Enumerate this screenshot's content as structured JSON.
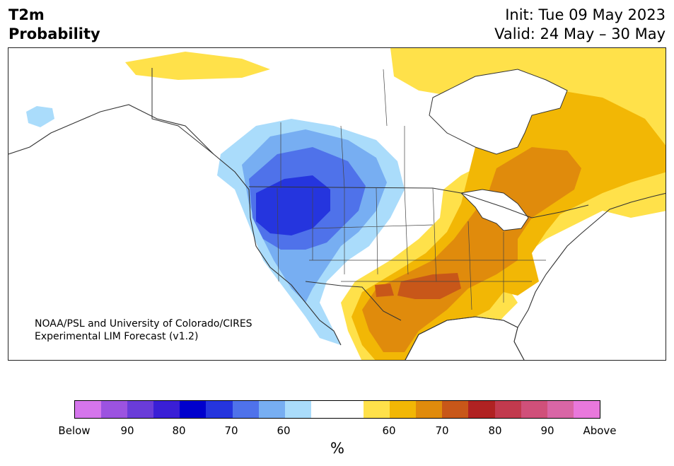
{
  "header": {
    "left_line1": "T2m",
    "left_line2": "Probability",
    "right_line1": "Init: Tue 09 May 2023",
    "right_line2": "Valid: 24 May – 30 May"
  },
  "credit": {
    "line1": "NOAA/PSL and University of Colorado/CIRES",
    "line2": "Experimental LIM Forecast (v1.2)"
  },
  "colorbar": {
    "colors": [
      "#d575ec",
      "#9c53e0",
      "#6a3cd9",
      "#3a1fd6",
      "#0000cd",
      "#2535de",
      "#4f72ea",
      "#77aef2",
      "#aadcfb",
      "#ffffff",
      "#ffffff",
      "#ffe14a",
      "#f2b705",
      "#e08b0c",
      "#c85719",
      "#b02222",
      "#c23a4e",
      "#d0507a",
      "#d966a6",
      "#e978dc"
    ],
    "tick_labels": [
      "Below",
      "90",
      "80",
      "70",
      "60",
      "60",
      "70",
      "80",
      "90",
      "Above"
    ],
    "unit": "%"
  },
  "map": {
    "region": "North America",
    "below_colors": {
      "60": "#aadcfb",
      "70": "#77aef2",
      "80": "#4f72ea",
      "90": "#2535de"
    },
    "above_colors": {
      "60": "#ffe14a",
      "70": "#f2b705",
      "80": "#e08b0c",
      "90": "#c85719"
    },
    "water_color": "#ffffff",
    "border_color": "#333333"
  }
}
